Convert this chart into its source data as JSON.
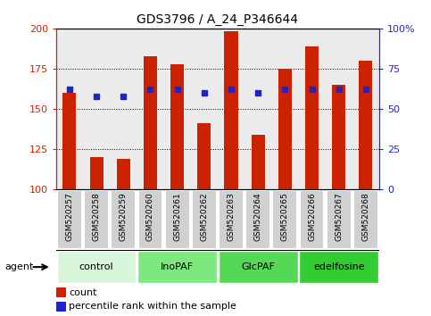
{
  "title": "GDS3796 / A_24_P346644",
  "samples": [
    "GSM520257",
    "GSM520258",
    "GSM520259",
    "GSM520260",
    "GSM520261",
    "GSM520262",
    "GSM520263",
    "GSM520264",
    "GSM520265",
    "GSM520266",
    "GSM520267",
    "GSM520268"
  ],
  "counts": [
    160,
    120,
    119,
    183,
    178,
    141,
    198,
    134,
    175,
    189,
    165,
    180
  ],
  "percentile_ranks": [
    62,
    58,
    58,
    62,
    62,
    60,
    62,
    60,
    62,
    62,
    62,
    62
  ],
  "groups": [
    {
      "label": "control",
      "start": 0,
      "end": 3,
      "color": "#d9f5d9"
    },
    {
      "label": "InoPAF",
      "start": 3,
      "end": 6,
      "color": "#7de87d"
    },
    {
      "label": "GlcPAF",
      "start": 6,
      "end": 9,
      "color": "#55d855"
    },
    {
      "label": "edelfosine",
      "start": 9,
      "end": 12,
      "color": "#33cc33"
    }
  ],
  "ymin": 100,
  "ymax": 200,
  "yticks_left": [
    100,
    125,
    150,
    175,
    200
  ],
  "yticks_right": [
    0,
    25,
    50,
    75,
    100
  ],
  "bar_color": "#cc2200",
  "dot_color": "#2222cc",
  "bar_width": 0.5,
  "legend_count_label": "count",
  "legend_pct_label": "percentile rank within the sample",
  "agent_label": "agent",
  "background_color": "#ffffff",
  "plot_bg_color": "#ebebeb",
  "cell_color": "#d0d0d0",
  "cell_border_color": "#ffffff"
}
